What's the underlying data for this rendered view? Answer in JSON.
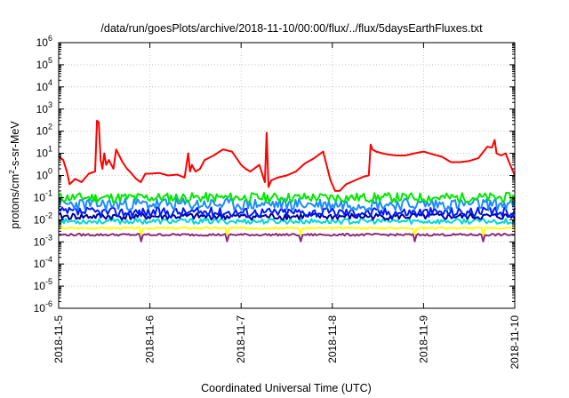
{
  "chart_data": {
    "type": "line",
    "title": "/data/run/goesPlots/archive/2018-11-10/00:00/flux/../flux/5daysEarthFluxes.txt",
    "xlabel": "Coordinated Universal Time (UTC)",
    "ylabel": {
      "prefix": "protons/cm",
      "sup": "2",
      "suffix": "-s-sr-MeV"
    },
    "y_scale": "log",
    "ylim": [
      1e-06,
      1000000.0
    ],
    "y_ticks": [
      {
        "value": 1e-06,
        "base": "10",
        "exp": "-6"
      },
      {
        "value": 1e-05,
        "base": "10",
        "exp": "-5"
      },
      {
        "value": 0.0001,
        "base": "10",
        "exp": "-4"
      },
      {
        "value": 0.001,
        "base": "10",
        "exp": "-3"
      },
      {
        "value": 0.01,
        "base": "10",
        "exp": "-2"
      },
      {
        "value": 0.1,
        "base": "10",
        "exp": "-1"
      },
      {
        "value": 1,
        "base": "10",
        "exp": "0"
      },
      {
        "value": 10,
        "base": "10",
        "exp": "1"
      },
      {
        "value": 100,
        "base": "10",
        "exp": "2"
      },
      {
        "value": 1000,
        "base": "10",
        "exp": "3"
      },
      {
        "value": 10000,
        "base": "10",
        "exp": "4"
      },
      {
        "value": 100000,
        "base": "10",
        "exp": "5"
      },
      {
        "value": 1000000,
        "base": "10",
        "exp": "6"
      }
    ],
    "xlim": [
      "2018-11-05",
      "2018-11-10"
    ],
    "x_ticks": [
      "2018-11-5",
      "2018-11-6",
      "2018-11-7",
      "2018-11-8",
      "2018-11-9",
      "2018-11-10"
    ],
    "grid": true,
    "series": [
      {
        "color": "#ff0000",
        "x": [
          5.0,
          5.05,
          5.09,
          5.12,
          5.18,
          5.25,
          5.33,
          5.4,
          5.42,
          5.44,
          5.46,
          5.48,
          5.5,
          5.52,
          5.55,
          5.6,
          5.63,
          5.7,
          5.75,
          5.78,
          5.85,
          5.9,
          5.95,
          6.0,
          6.1,
          6.2,
          6.3,
          6.38,
          6.42,
          6.44,
          6.46,
          6.5,
          6.55,
          6.6,
          6.7,
          6.8,
          6.9,
          7.0,
          7.05,
          7.1,
          7.2,
          7.26,
          7.28,
          7.3,
          7.33,
          7.4,
          7.5,
          7.6,
          7.7,
          7.8,
          7.9,
          7.98,
          8.03,
          8.08,
          8.15,
          8.25,
          8.35,
          8.4,
          8.42,
          8.44,
          8.48,
          8.55,
          8.6,
          8.7,
          8.8,
          8.9,
          9.0,
          9.1,
          9.2,
          9.3,
          9.4,
          9.5,
          9.6,
          9.7,
          9.75,
          9.78,
          9.8,
          9.85,
          9.9,
          9.95,
          10.0
        ],
        "y": [
          7,
          5,
          1.5,
          0.4,
          0.7,
          0.5,
          1.2,
          1.5,
          300,
          250,
          5,
          2,
          10,
          3,
          5,
          2,
          15,
          4,
          2,
          1.5,
          0.7,
          0.5,
          1.2,
          1.2,
          1.3,
          1.0,
          1.1,
          0.8,
          10,
          1.5,
          3,
          1.5,
          2,
          5,
          8,
          15,
          12,
          3,
          2,
          1.5,
          3,
          0.5,
          85,
          0.3,
          0.6,
          0.8,
          1.0,
          1.5,
          3.5,
          6,
          12,
          0.6,
          0.2,
          0.2,
          0.4,
          0.6,
          0.9,
          1.0,
          25,
          15,
          12,
          10,
          9,
          8,
          8,
          10,
          12,
          9,
          7,
          4,
          4,
          4.5,
          6,
          20,
          18,
          40,
          10,
          8,
          10,
          3,
          1
        ]
      },
      {
        "color": "#00e800",
        "base": 0.1,
        "spread": 0.22,
        "seed": 11,
        "dips": []
      },
      {
        "color": "#1c8cff",
        "base": 0.05,
        "spread": 0.28,
        "seed": 23,
        "dips": []
      },
      {
        "color": "#0018ff",
        "base": 0.022,
        "spread": 0.22,
        "seed": 37,
        "dips": []
      },
      {
        "color": "#000090",
        "base": 0.014,
        "spread": 0.15,
        "seed": 41,
        "dips": []
      },
      {
        "color": "#00d8d8",
        "base": 0.0085,
        "spread": 0.12,
        "seed": 53,
        "dips": []
      },
      {
        "color": "#ffff00",
        "base": 0.0042,
        "spread": 0.04,
        "seed": 67,
        "dips": [
          5.9,
          6.85,
          7.65,
          8.9,
          9.65
        ]
      },
      {
        "color": "#8b2a7a",
        "base": 0.0021,
        "spread": 0.05,
        "seed": 79,
        "dips": [
          5.9,
          6.85,
          7.65,
          8.9,
          9.65
        ]
      }
    ]
  }
}
